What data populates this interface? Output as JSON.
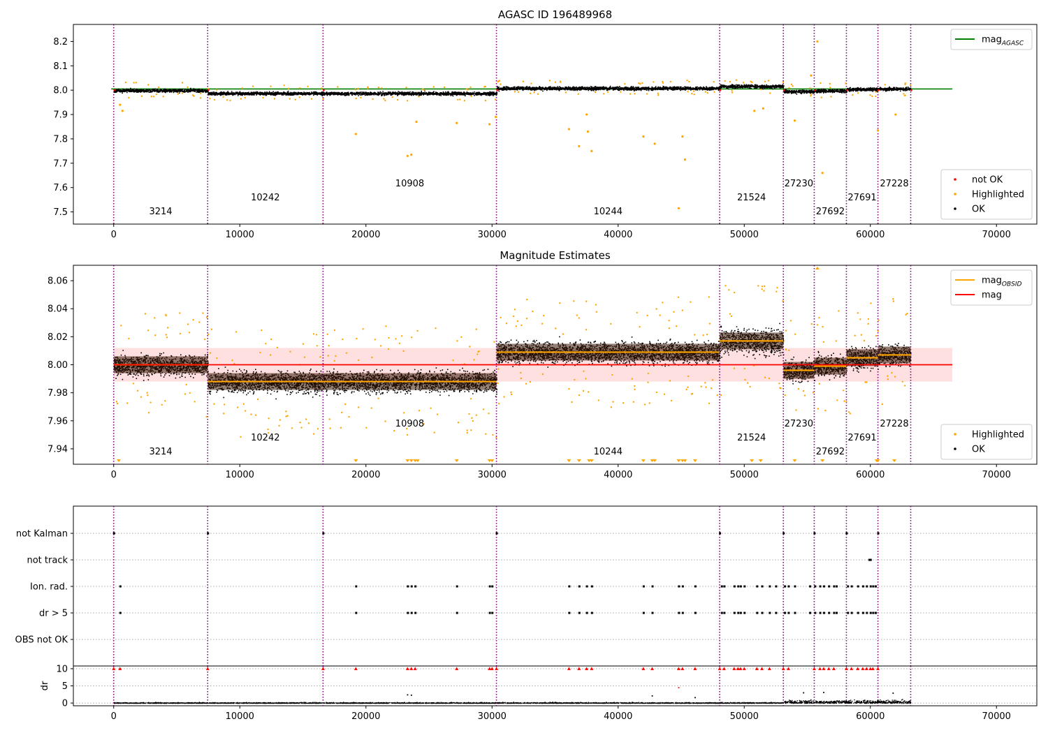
{
  "figure": {
    "panels": [
      {
        "id": "p1",
        "title": "AGASC ID 196489968"
      },
      {
        "id": "p2",
        "title": "Magnitude Estimates"
      },
      {
        "id": "p3",
        "title": ""
      }
    ]
  },
  "chart_data": [
    {
      "type": "scatter",
      "title": "AGASC ID 196489968",
      "xlim": [
        -3200,
        73200
      ],
      "ylim": [
        7.45,
        8.27
      ],
      "x_ticks": [
        0,
        10000,
        20000,
        30000,
        40000,
        50000,
        60000,
        70000
      ],
      "y_ticks": [
        7.5,
        7.6,
        7.7,
        7.8,
        7.9,
        8.0,
        8.1,
        8.2
      ],
      "y_tick_labels": [
        "7.5",
        "7.6",
        "7.7",
        "7.8",
        "7.9",
        "8.0",
        "8.1",
        "8.2"
      ],
      "obs_boundaries": [
        0,
        7450,
        16600,
        30350,
        48050,
        53100,
        55550,
        58100,
        60600,
        63200
      ],
      "observations": [
        {
          "obsid": "3214",
          "start": 0,
          "end": 7450,
          "mean": 8.0
        },
        {
          "obsid": "10242",
          "start": 7450,
          "end": 16600,
          "mean": 7.988
        },
        {
          "obsid": "10908",
          "start": 16600,
          "end": 30350,
          "mean": 7.988
        },
        {
          "obsid": "10244",
          "start": 30350,
          "end": 48050,
          "mean": 8.009
        },
        {
          "obsid": "21524",
          "start": 48050,
          "end": 53100,
          "mean": 8.017
        },
        {
          "obsid": "27230",
          "start": 53100,
          "end": 55550,
          "mean": 7.996
        },
        {
          "obsid": "27692",
          "start": 55550,
          "end": 58100,
          "mean": 7.999
        },
        {
          "obsid": "27691",
          "start": 58100,
          "end": 60600,
          "mean": 8.005
        },
        {
          "obsid": "27228",
          "start": 60600,
          "end": 63200,
          "mean": 8.007
        }
      ],
      "series": [
        {
          "name": "mag_AGASC",
          "type": "line",
          "x": [
            -200,
            66500
          ],
          "y": [
            8.005,
            8.005
          ],
          "color": "#008000"
        },
        {
          "name": "not OK",
          "type": "scatter",
          "color": "#ff0000"
        },
        {
          "name": "Highlighted",
          "type": "scatter",
          "color": "#ffa500"
        },
        {
          "name": "OK",
          "type": "scatter",
          "color": "#000000"
        }
      ],
      "highlighted_outliers": [
        [
          500,
          7.94
        ],
        [
          700,
          7.915
        ],
        [
          19200,
          7.82
        ],
        [
          23300,
          7.73
        ],
        [
          23600,
          7.735
        ],
        [
          24000,
          7.87
        ],
        [
          27200,
          7.865
        ],
        [
          29800,
          7.86
        ],
        [
          30300,
          7.89
        ],
        [
          36100,
          7.84
        ],
        [
          36900,
          7.77
        ],
        [
          37500,
          7.9
        ],
        [
          37600,
          7.83
        ],
        [
          37900,
          7.75
        ],
        [
          42000,
          7.81
        ],
        [
          42900,
          7.78
        ],
        [
          44800,
          7.515
        ],
        [
          45100,
          7.81
        ],
        [
          45300,
          7.715
        ],
        [
          50800,
          7.915
        ],
        [
          51500,
          7.925
        ],
        [
          54000,
          7.875
        ],
        [
          55800,
          8.2
        ],
        [
          55300,
          8.06
        ],
        [
          56200,
          7.66
        ],
        [
          60600,
          7.835
        ],
        [
          62000,
          7.9
        ]
      ],
      "legend": {
        "upper": {
          "position": "upper-right",
          "entries": [
            {
              "label": "mag",
              "subscript": "AGASC",
              "color": "#008000",
              "kind": "line"
            }
          ]
        },
        "lower": {
          "position": "lower-right",
          "entries": [
            {
              "label": "not OK",
              "color": "#ff0000",
              "kind": "dot"
            },
            {
              "label": "Highlighted",
              "color": "#ffa500",
              "kind": "dot"
            },
            {
              "label": "OK",
              "color": "#000000",
              "kind": "dot"
            }
          ]
        }
      }
    },
    {
      "type": "scatter",
      "title": "Magnitude Estimates",
      "xlim": [
        -3200,
        73200
      ],
      "ylim": [
        7.929,
        8.071
      ],
      "x_ticks": [
        0,
        10000,
        20000,
        30000,
        40000,
        50000,
        60000,
        70000
      ],
      "y_ticks": [
        7.94,
        7.96,
        7.98,
        8.0,
        8.02,
        8.04,
        8.06
      ],
      "y_tick_labels": [
        "7.94",
        "7.96",
        "7.98",
        "8.00",
        "8.02",
        "8.04",
        "8.06"
      ],
      "mean_mag": 8.0,
      "mag_band": [
        7.988,
        8.012
      ],
      "series": [
        {
          "name": "mag_OBSID",
          "type": "step",
          "color": "#ffa500"
        },
        {
          "name": "mag",
          "type": "line",
          "x": [
            0,
            66500
          ],
          "y": [
            8.0,
            8.0
          ],
          "color": "#ff0000"
        },
        {
          "name": "Highlighted",
          "type": "scatter",
          "color": "#ffa500"
        },
        {
          "name": "OK",
          "type": "scatter",
          "color": "#000000"
        }
      ],
      "legend": {
        "upper": {
          "position": "upper-right",
          "entries": [
            {
              "label": "mag",
              "subscript": "OBSID",
              "color": "#ffa500",
              "kind": "line"
            },
            {
              "label": "mag",
              "subscript": "",
              "color": "#ff0000",
              "kind": "line"
            }
          ]
        },
        "lower": {
          "position": "lower-right",
          "entries": [
            {
              "label": "Highlighted",
              "color": "#ffa500",
              "kind": "dot"
            },
            {
              "label": "OK",
              "color": "#000000",
              "kind": "dot"
            }
          ]
        }
      },
      "offscale_triangles_x": [
        400,
        19200,
        23300,
        23600,
        23900,
        24100,
        27200,
        29800,
        30000,
        36100,
        36900,
        37700,
        37900,
        42000,
        42700,
        42900,
        44800,
        45100,
        45300,
        46100,
        50600,
        51300,
        54000,
        56200,
        60500,
        60600,
        61900
      ]
    },
    {
      "type": "scatter",
      "title": "",
      "xlim": [
        -3200,
        73200
      ],
      "flag_categories": [
        "not Kalman",
        "not track",
        "Ion. rad.",
        "dr > 5",
        "OBS not OK"
      ],
      "flag_events": {
        "not Kalman": [
          0,
          7450,
          16600,
          30350,
          48050,
          53100,
          55550,
          58100,
          60600
        ],
        "not track": [
          59900,
          60000
        ],
        "Ion. rad.": [
          500,
          19200,
          23300,
          23600,
          23900,
          27200,
          29800,
          30000,
          36100,
          36900,
          37500,
          37900,
          42000,
          42700,
          44800,
          45100,
          46100,
          48200,
          48400,
          49200,
          49500,
          49700,
          50000,
          51000,
          51400,
          52000,
          52500,
          53200,
          53500,
          54000,
          55200,
          55600,
          56000,
          56300,
          56700,
          57100,
          57300,
          58200,
          58500,
          59000,
          59400,
          59700,
          60000,
          60200,
          60400
        ],
        "dr > 5": [
          500,
          19200,
          23300,
          23600,
          23900,
          27200,
          29800,
          30000,
          36100,
          36900,
          37500,
          37900,
          42000,
          42700,
          44800,
          45100,
          46100,
          48200,
          48400,
          49200,
          49500,
          49700,
          50000,
          51000,
          51400,
          52000,
          52500,
          53200,
          53500,
          54000,
          55200,
          55600,
          56000,
          56300,
          56700,
          57100,
          57300,
          58200,
          58500,
          59000,
          59400,
          59700,
          60000,
          60200,
          60400
        ],
        "OBS not OK": []
      },
      "dr_panel": {
        "ylabel": "dr",
        "ylim": [
          -0.8,
          10.8
        ],
        "y_ticks": [
          0,
          5,
          10
        ],
        "y_tick_labels": [
          "0",
          "5",
          "10"
        ],
        "scattered_points": [
          [
            23300,
            2.4
          ],
          [
            23600,
            2.3
          ],
          [
            42700,
            2.1
          ],
          [
            44800,
            4.5
          ],
          [
            46100,
            1.6
          ],
          [
            54700,
            3.0
          ],
          [
            56300,
            3.1
          ],
          [
            61800,
            2.9
          ]
        ],
        "capped_red_x": [
          0,
          500,
          7450,
          16600,
          19200,
          23300,
          23600,
          23900,
          27200,
          29800,
          30000,
          30350,
          36100,
          36900,
          37500,
          37900,
          42000,
          42700,
          44800,
          45100,
          46100,
          48050,
          48400,
          49200,
          49500,
          49700,
          50000,
          51000,
          51400,
          52000,
          53100,
          53500,
          55550,
          56000,
          56300,
          56700,
          57100,
          58100,
          58500,
          59000,
          59400,
          59700,
          60000,
          60200,
          60600
        ]
      }
    }
  ]
}
